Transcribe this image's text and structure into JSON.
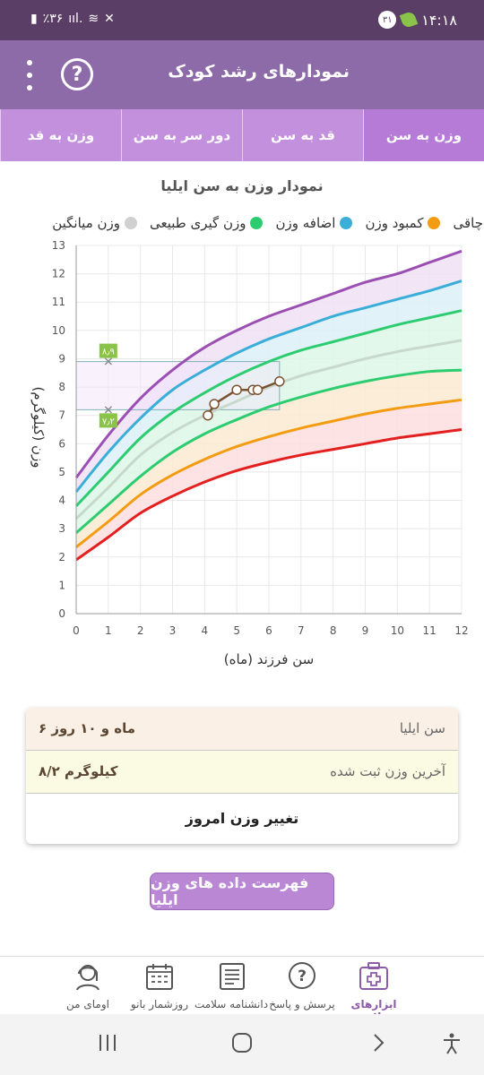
{
  "status": {
    "time": "۱۴:۱۸",
    "notif_count": "۳۱",
    "battery": "٪۳۶"
  },
  "appbar": {
    "title": "نمودارهای رشد کودک",
    "help_icon": "question-circle-icon",
    "menu_icon": "more-vert-icon"
  },
  "tabs": [
    {
      "label": "وزن به سن",
      "active": true
    },
    {
      "label": "قد به سن",
      "active": false
    },
    {
      "label": "دور سر به سن",
      "active": false
    },
    {
      "label": "وزن به قد",
      "active": false
    }
  ],
  "chart_title": "نمودار وزن به سن ایلیا",
  "legend": [
    {
      "label": "چاقی",
      "color": "#9b4fb3"
    },
    {
      "label": "کمبود وزن",
      "color": "#f39c12"
    },
    {
      "label": "اضافه وزن",
      "color": "#3aaed8"
    },
    {
      "label": "وزن گیری طبیعی",
      "color": "#2ecc71"
    },
    {
      "label": "وزن میانگین",
      "color": "#d0d0d0"
    }
  ],
  "chart_data": {
    "type": "line",
    "xlabel": "سن فرزند (ماه)",
    "ylabel": "وزن (کیلوگرم)",
    "xlim": [
      0,
      12
    ],
    "ylim": [
      0,
      13
    ],
    "x": [
      0,
      1,
      2,
      3,
      4,
      5,
      6,
      7,
      8,
      9,
      10,
      11,
      12
    ],
    "series": [
      {
        "name": "چاقی",
        "color": "#9b4fb3",
        "values": [
          4.8,
          6.3,
          7.6,
          8.6,
          9.4,
          10.0,
          10.5,
          10.9,
          11.3,
          11.7,
          12.0,
          12.4,
          12.8
        ]
      },
      {
        "name": "اضافه وزن",
        "color": "#3aaed8",
        "values": [
          4.3,
          5.7,
          6.9,
          7.9,
          8.6,
          9.2,
          9.7,
          10.1,
          10.5,
          10.8,
          11.1,
          11.4,
          11.75
        ]
      },
      {
        "name": "وزن گیری طبیعی",
        "color": "#2ecc71",
        "values": [
          3.8,
          5.0,
          6.2,
          7.1,
          7.8,
          8.4,
          8.9,
          9.3,
          9.6,
          9.9,
          10.2,
          10.45,
          10.7
        ]
      },
      {
        "name": "وزن میانگین",
        "color": "#c8d9cc",
        "values": [
          3.35,
          4.45,
          5.6,
          6.4,
          7.0,
          7.5,
          8.0,
          8.4,
          8.7,
          9.0,
          9.25,
          9.45,
          9.65
        ]
      },
      {
        "name": "وزن گیری طبیعی",
        "color": "#2ecc71",
        "values": [
          2.85,
          3.85,
          4.85,
          5.7,
          6.35,
          6.85,
          7.3,
          7.65,
          7.95,
          8.2,
          8.4,
          8.55,
          8.6
        ]
      },
      {
        "name": "کمبود وزن",
        "color": "#f39c12",
        "values": [
          2.35,
          3.25,
          4.2,
          4.9,
          5.45,
          5.9,
          6.25,
          6.55,
          6.8,
          7.05,
          7.25,
          7.4,
          7.55
        ]
      },
      {
        "name": "",
        "color": "#e32020",
        "values": [
          1.9,
          2.7,
          3.55,
          4.15,
          4.65,
          5.05,
          5.35,
          5.6,
          5.8,
          6.0,
          6.2,
          6.35,
          6.5
        ]
      }
    ],
    "measurements": {
      "x": [
        4.1,
        4.3,
        5.0,
        5.5,
        5.65,
        6.33
      ],
      "y": [
        7.0,
        7.4,
        7.9,
        7.9,
        7.9,
        8.2
      ]
    },
    "marker_x": 1,
    "range_labels": {
      "upper": "۸٫۹",
      "lower": "۷٫۲",
      "upper_value": 8.9,
      "lower_value": 7.2
    },
    "xticks": [
      "0",
      "1",
      "2",
      "3",
      "4",
      "5",
      "6",
      "7",
      "8",
      "9",
      "10",
      "11",
      "12"
    ],
    "yticks": [
      "0",
      "1",
      "2",
      "3",
      "4",
      "5",
      "6",
      "7",
      "8",
      "9",
      "10",
      "11",
      "12",
      "13"
    ]
  },
  "info": {
    "age_label": "سن ایلیا",
    "age_value": "۶ ماه و ۱۰ روز",
    "weight_label": "آخرین وزن ثبت شده",
    "weight_value": "۸/۲ کیلوگرم",
    "today_button": "تغییر وزن امروز"
  },
  "list_button": "فهرست داده های وزن ایلیا",
  "bottom_nav": [
    {
      "label": "ابزارهای سلامت",
      "icon": "medical-kit-icon",
      "active": true
    },
    {
      "label": "پرسش و پاسخ",
      "icon": "question-bubble-icon",
      "active": false
    },
    {
      "label": "دانشنامه سلامت",
      "icon": "newspaper-icon",
      "active": false
    },
    {
      "label": "روزشمار بانو",
      "icon": "calendar-icon",
      "active": false
    },
    {
      "label": "اومای من",
      "icon": "woman-avatar-icon",
      "active": false
    }
  ]
}
